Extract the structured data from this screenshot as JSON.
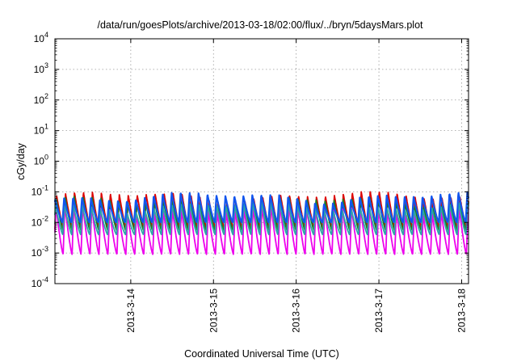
{
  "chart_data": {
    "type": "line",
    "title": "/data/run/goesPlots/archive/2013-03-18/02:00/flux/../bryn/5daysMars.plot",
    "xlabel": "Coordinated Universal Time (UTC)",
    "ylabel": "cGy/day",
    "y_scale": "log",
    "ylim": [
      0.0001,
      10000
    ],
    "x_range_days": [
      "2013-03-13T02:00",
      "2013-03-18T02:00"
    ],
    "x_ticks": [
      "2013-3-14",
      "2013-3-15",
      "2013-3-16",
      "2013-3-17",
      "2013-3-18"
    ],
    "y_ticks": [
      {
        "base": "10",
        "exp": "4"
      },
      {
        "base": "10",
        "exp": "3"
      },
      {
        "base": "10",
        "exp": "2"
      },
      {
        "base": "10",
        "exp": "1"
      },
      {
        "base": "10",
        "exp": "0"
      },
      {
        "base": "10",
        "exp": "-1"
      },
      {
        "base": "10",
        "exp": "-2"
      },
      {
        "base": "10",
        "exp": "-3"
      },
      {
        "base": "10",
        "exp": "-4"
      }
    ],
    "grid": true,
    "legend": "none",
    "cycle_hours": 2.6,
    "series": [
      {
        "color": "#dd0000",
        "peak": 0.075,
        "trough": 0.006
      },
      {
        "color": "#1e7a1e",
        "peak": 0.05,
        "trough": 0.005
      },
      {
        "color": "#ee00ee",
        "peak": 0.03,
        "trough": 0.0009
      },
      {
        "color": "#2ba7a7",
        "peak": 0.035,
        "trough": 0.004
      },
      {
        "color": "#1155ee",
        "peak": 0.07,
        "trough": 0.01
      }
    ]
  }
}
